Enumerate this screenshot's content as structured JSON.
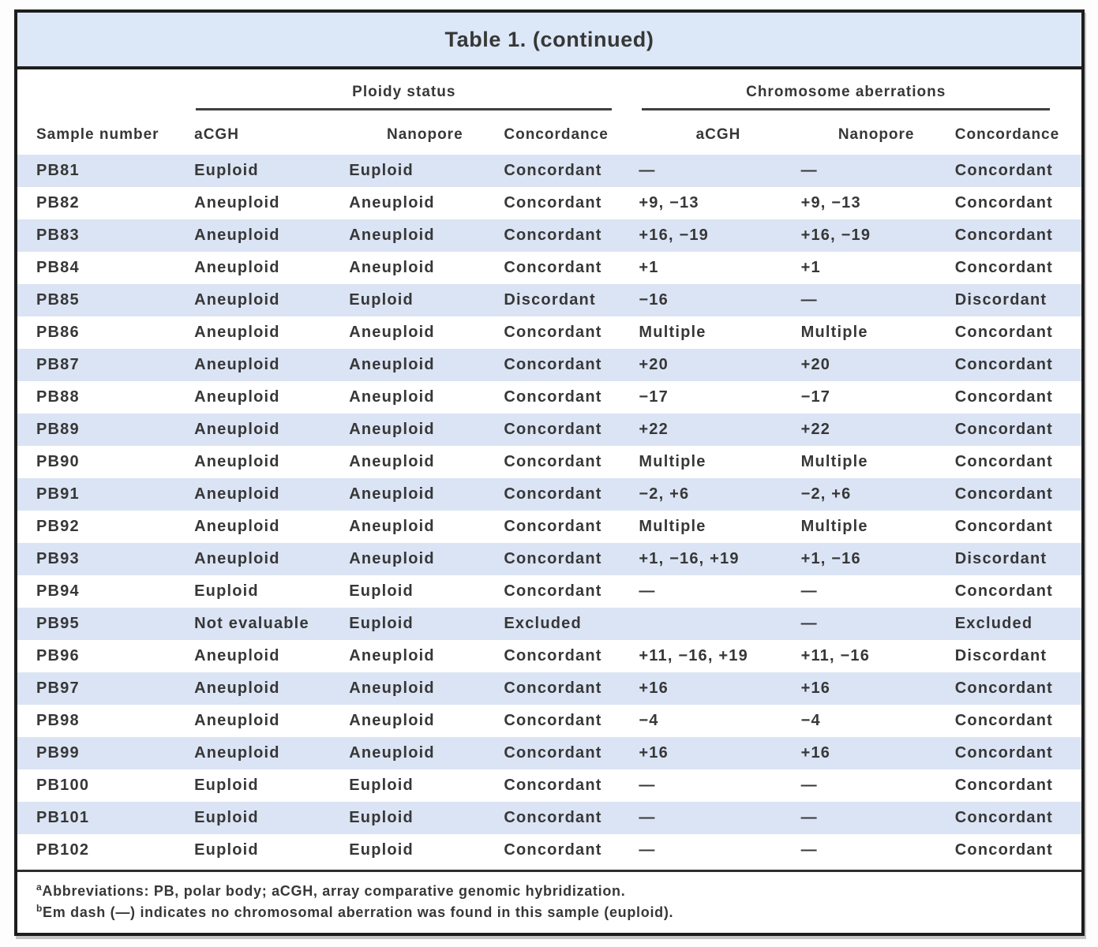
{
  "title": "Table 1. (continued)",
  "table": {
    "groups": [
      {
        "label": "Ploidy status"
      },
      {
        "label": "Chromosome aberrations"
      }
    ],
    "columns": [
      "Sample number",
      "aCGH",
      "Nanopore",
      "Concordance",
      "aCGH",
      "Nanopore",
      "Concordance"
    ],
    "rows": [
      {
        "cells": [
          "PB81",
          "Euploid",
          "Euploid",
          "Concordant",
          "—",
          "—",
          "Concordant"
        ]
      },
      {
        "cells": [
          "PB82",
          "Aneuploid",
          "Aneuploid",
          "Concordant",
          "+9, −13",
          "+9, −13",
          "Concordant"
        ]
      },
      {
        "cells": [
          "PB83",
          "Aneuploid",
          "Aneuploid",
          "Concordant",
          "+16, −19",
          "+16, −19",
          "Concordant"
        ]
      },
      {
        "cells": [
          "PB84",
          "Aneuploid",
          "Aneuploid",
          "Concordant",
          "+1",
          "+1",
          "Concordant"
        ]
      },
      {
        "cells": [
          "PB85",
          "Aneuploid",
          "Euploid",
          "Discordant",
          "−16",
          "—",
          "Discordant"
        ]
      },
      {
        "cells": [
          "PB86",
          "Aneuploid",
          "Aneuploid",
          "Concordant",
          "Multiple",
          "Multiple",
          "Concordant"
        ]
      },
      {
        "cells": [
          "PB87",
          "Aneuploid",
          "Aneuploid",
          "Concordant",
          "+20",
          "+20",
          "Concordant"
        ]
      },
      {
        "cells": [
          "PB88",
          "Aneuploid",
          "Aneuploid",
          "Concordant",
          "−17",
          "−17",
          "Concordant"
        ]
      },
      {
        "cells": [
          "PB89",
          "Aneuploid",
          "Aneuploid",
          "Concordant",
          "+22",
          "+22",
          "Concordant"
        ]
      },
      {
        "cells": [
          "PB90",
          "Aneuploid",
          "Aneuploid",
          "Concordant",
          "Multiple",
          "Multiple",
          "Concordant"
        ]
      },
      {
        "cells": [
          "PB91",
          "Aneuploid",
          "Aneuploid",
          "Concordant",
          "−2, +6",
          "−2, +6",
          "Concordant"
        ]
      },
      {
        "cells": [
          "PB92",
          "Aneuploid",
          "Aneuploid",
          "Concordant",
          "Multiple",
          "Multiple",
          "Concordant"
        ]
      },
      {
        "cells": [
          "PB93",
          "Aneuploid",
          "Aneuploid",
          "Concordant",
          "+1, −16, +19",
          "+1, −16",
          "Discordant"
        ]
      },
      {
        "cells": [
          "PB94",
          "Euploid",
          "Euploid",
          "Concordant",
          "—",
          "—",
          "Concordant"
        ]
      },
      {
        "cells": [
          "PB95",
          "Not evaluable",
          "Euploid",
          "Excluded",
          "",
          "—",
          "Excluded"
        ]
      },
      {
        "cells": [
          "PB96",
          "Aneuploid",
          "Aneuploid",
          "Concordant",
          "+11, −16, +19",
          "+11, −16",
          "Discordant"
        ]
      },
      {
        "cells": [
          "PB97",
          "Aneuploid",
          "Aneuploid",
          "Concordant",
          "+16",
          "+16",
          "Concordant"
        ]
      },
      {
        "cells": [
          "PB98",
          "Aneuploid",
          "Aneuploid",
          "Concordant",
          "−4",
          "−4",
          "Concordant"
        ]
      },
      {
        "cells": [
          "PB99",
          "Aneuploid",
          "Aneuploid",
          "Concordant",
          "+16",
          "+16",
          "Concordant"
        ]
      },
      {
        "cells": [
          "PB100",
          "Euploid",
          "Euploid",
          "Concordant",
          "—",
          "—",
          "Concordant"
        ]
      },
      {
        "cells": [
          "PB101",
          "Euploid",
          "Euploid",
          "Concordant",
          "—",
          "—",
          "Concordant"
        ]
      },
      {
        "cells": [
          "PB102",
          "Euploid",
          "Euploid",
          "Concordant",
          "—",
          "—",
          "Concordant"
        ]
      }
    ]
  },
  "footnotes": [
    {
      "marker": "a",
      "text": "Abbreviations: PB, polar body; aCGH, array comparative genomic hybridization."
    },
    {
      "marker": "b",
      "text": "Em dash (—) indicates no chromosomal aberration was found in this sample (euploid)."
    }
  ],
  "colors": {
    "title_bar_bg": "#dce7f7",
    "row_alt_bg": "#dbe4f4",
    "border": "#1e1e1e",
    "text": "#373737"
  }
}
